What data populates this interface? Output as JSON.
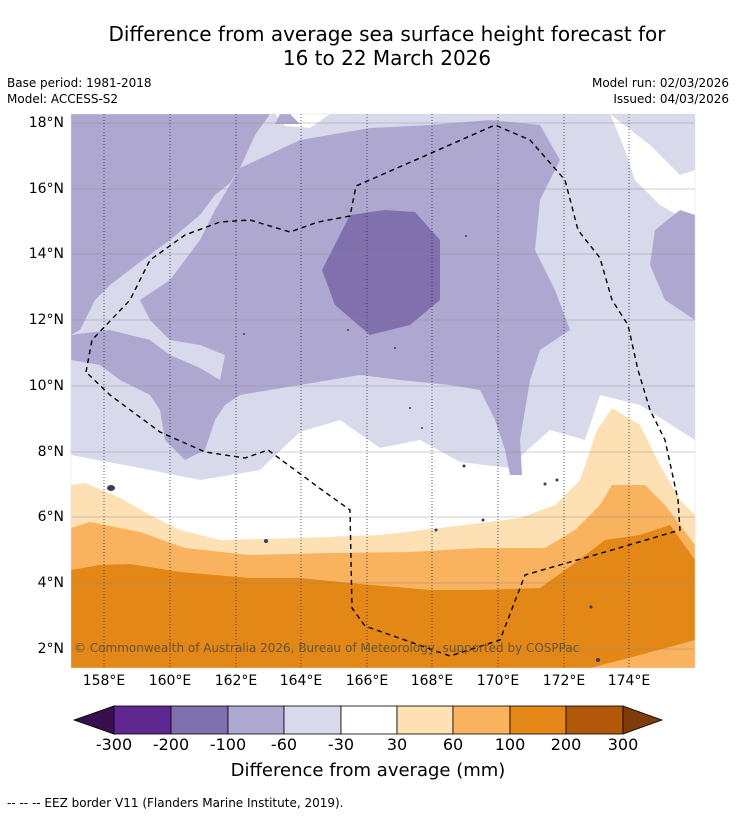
{
  "title": {
    "line1": "Difference from average sea surface height forecast for",
    "line2": "16 to 22 March 2026"
  },
  "meta": {
    "base_period": "Base period: 1981-2018",
    "model": "Model: ACCESS-S2",
    "model_run": "Model run: 02/03/2026",
    "issued": "Issued: 04/03/2026"
  },
  "map": {
    "lat_labels": [
      "18°N",
      "16°N",
      "14°N",
      "12°N",
      "10°N",
      "8°N",
      "6°N",
      "4°N",
      "2°N"
    ],
    "lon_labels": [
      "158°E",
      "160°E",
      "162°E",
      "164°E",
      "166°E",
      "168°E",
      "170°E",
      "172°E",
      "174°E"
    ],
    "copyright": "© Commonwealth of Australia 2026, Bureau of Meteorology, supported by COSPPac"
  },
  "colorbar": {
    "labels": [
      "-300",
      "-200",
      "-100",
      "-60",
      "-30",
      "30",
      "60",
      "100",
      "200",
      "300"
    ],
    "colors": {
      "lt300": "#3b0f4e",
      "m300_200": "#5e2890",
      "m200_100": "#8070ad",
      "m100_60": "#aea8d1",
      "m60_30": "#d9d9ec",
      "m30_30": "#ffffff",
      "p30_60": "#fde0b3",
      "p60_100": "#f9b35e",
      "p100_200": "#e38716",
      "p200_300": "#b25809",
      "gt300": "#7f3b08"
    },
    "title": "Difference from average (mm)"
  },
  "footnote": "--  --  -- EEZ border V11 (Flanders Marine Institute, 2019)."
}
